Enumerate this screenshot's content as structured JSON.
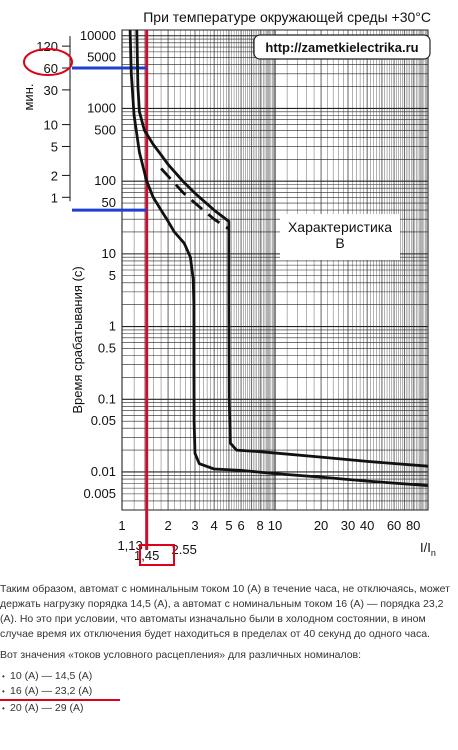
{
  "chart_data": {
    "type": "line",
    "title": "При температуре окружающей среды +30°C",
    "url": "http://zametkielectrika.ru",
    "xlabel": "I/I",
    "xlabel_sub": "n",
    "ylabel": "Время срабатывания (с)",
    "ylabel_minutes": "мин.",
    "characteristic_label_line1": "Характеристика",
    "characteristic_label_line2": "B",
    "xscale": "log",
    "yscale": "log",
    "xlim": [
      1,
      100
    ],
    "ylim": [
      0.003,
      12000
    ],
    "grid": true,
    "x_tick_values": [
      1,
      2,
      3,
      4,
      5,
      6,
      8,
      10,
      20,
      30,
      40,
      60,
      80
    ],
    "x_tick_labels": [
      "1",
      "2",
      "3",
      "4",
      "5",
      "6",
      "8",
      "10",
      "20",
      "30",
      "40",
      "60",
      "80"
    ],
    "x_extra_labels": [
      {
        "value": 1.13,
        "label": "1,13"
      },
      {
        "value": 1.45,
        "label": "1,45"
      },
      {
        "value": 2.55,
        "label": "2.55"
      }
    ],
    "y_tick_values": [
      10000,
      5000,
      1000,
      500,
      100,
      50,
      10,
      5,
      1,
      0.5,
      0.1,
      0.05,
      0.01,
      0.005
    ],
    "y_tick_labels": [
      "10000",
      "5000",
      "1000",
      "500",
      "100",
      "50",
      "10",
      "5",
      "1",
      "0.5",
      "0.1",
      "0.05",
      "0.01",
      "0.005"
    ],
    "minute_tick_values": [
      7200,
      3600,
      1800,
      600,
      300,
      120,
      60
    ],
    "minute_tick_labels": [
      "120",
      "60",
      "30",
      "10",
      "5",
      "2",
      "1"
    ],
    "series": [
      {
        "style": "solid",
        "points": [
          [
            1.13,
            12000
          ],
          [
            1.15,
            3000
          ],
          [
            1.2,
            800
          ],
          [
            1.3,
            250
          ],
          [
            1.45,
            100
          ],
          [
            1.6,
            60
          ],
          [
            1.8,
            40
          ],
          [
            2,
            28
          ],
          [
            2.2,
            20
          ],
          [
            2.55,
            14
          ],
          [
            2.8,
            9
          ],
          [
            2.92,
            4.5
          ],
          [
            2.95,
            2
          ],
          [
            2.95,
            0.3
          ],
          [
            2.96,
            0.05
          ],
          [
            3,
            0.018
          ],
          [
            3.2,
            0.013
          ],
          [
            4,
            0.011
          ],
          [
            6,
            0.0105
          ],
          [
            10,
            0.0095
          ],
          [
            20,
            0.0085
          ],
          [
            40,
            0.0075
          ],
          [
            100,
            0.0065
          ]
        ]
      },
      {
        "style": "solid",
        "points": [
          [
            1.25,
            12000
          ],
          [
            1.27,
            2000
          ],
          [
            1.3,
            900
          ],
          [
            1.4,
            500
          ],
          [
            1.6,
            320
          ],
          [
            1.8,
            230
          ],
          [
            2,
            170
          ],
          [
            2.5,
            100
          ],
          [
            3,
            68
          ],
          [
            4,
            40
          ],
          [
            5,
            28
          ],
          [
            5,
            2
          ],
          [
            5.02,
            0.1
          ],
          [
            5.1,
            0.025
          ],
          [
            5.6,
            0.02
          ],
          [
            8,
            0.019
          ],
          [
            20,
            0.016
          ],
          [
            40,
            0.014
          ],
          [
            100,
            0.012
          ]
        ]
      },
      {
        "style": "dashed",
        "points": [
          [
            1.8,
            150
          ],
          [
            2.5,
            70
          ],
          [
            3,
            50
          ],
          [
            4,
            30
          ],
          [
            5,
            22
          ]
        ]
      }
    ],
    "reference_lines": [
      {
        "orient": "vertical",
        "x": 1.45,
        "color": "#c8102e"
      },
      {
        "orient": "horizontal",
        "y": 3600,
        "x_to": 1.45,
        "color": "#1f3fd1"
      },
      {
        "orient": "horizontal",
        "y": 40,
        "x_to": 1.45,
        "color": "#1f3fd1"
      }
    ],
    "highlight_box": "1,45",
    "highlight_circle_value": "60",
    "colors": {
      "curve": "#111111",
      "grid": "#222222",
      "vertical_marker": "#c8102e",
      "horizontal_marker": "#1f3fd1",
      "highlight": "#e0001a"
    }
  },
  "text": {
    "paragraph1": "Таким образом, автомат с номинальным током 10 (А) в течение часа, не отключаясь, может держать нагрузку порядка 14,5 (А), а автомат с номинальным током 16 (А) — порядка 23,2 (А). Но это при условии, что автоматы изначально были в холодном состоянии, в ином случае время их отключения будет находиться в пределах от 40 секунд до одного часа.",
    "paragraph2": "Вот значения «токов условного расцепления» для различных номиналов:",
    "items": [
      "10 (А) — 14,5 (А)",
      "16 (А) — 23,2 (А)",
      "20 (А) — 29 (А)"
    ]
  }
}
